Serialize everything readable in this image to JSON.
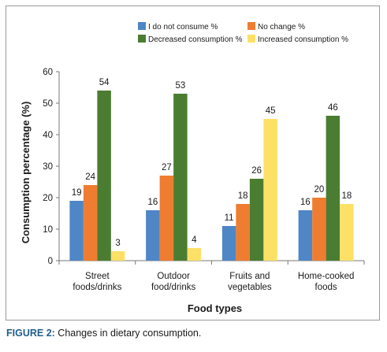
{
  "chart_data": {
    "type": "bar",
    "categories": [
      [
        "Street",
        "foods/drinks"
      ],
      [
        "Outdoor",
        "food/drinks"
      ],
      [
        "Fruits and",
        "vegetables"
      ],
      [
        "Home-cooked",
        "foods"
      ]
    ],
    "series": [
      {
        "name": "I do not consume %",
        "color": "#4f86c6",
        "values": [
          19,
          16,
          11,
          16
        ]
      },
      {
        "name": "No change %",
        "color": "#ee7d31",
        "values": [
          24,
          27,
          18,
          20
        ]
      },
      {
        "name": "Decreased consumption %",
        "color": "#4a7d32",
        "values": [
          54,
          53,
          26,
          46
        ]
      },
      {
        "name": "Increased consumption %",
        "color": "#fde167",
        "values": [
          3,
          4,
          45,
          18
        ]
      }
    ],
    "xlabel": "Food types",
    "ylabel": "Consumption percentage (%)",
    "ylim": [
      0,
      60
    ],
    "yticks": [
      0,
      10,
      20,
      30,
      40,
      50,
      60
    ],
    "grid": false,
    "legend": "top-right"
  },
  "caption": {
    "label": "FIGURE 2:",
    "text": " Changes in dietary consumption."
  }
}
